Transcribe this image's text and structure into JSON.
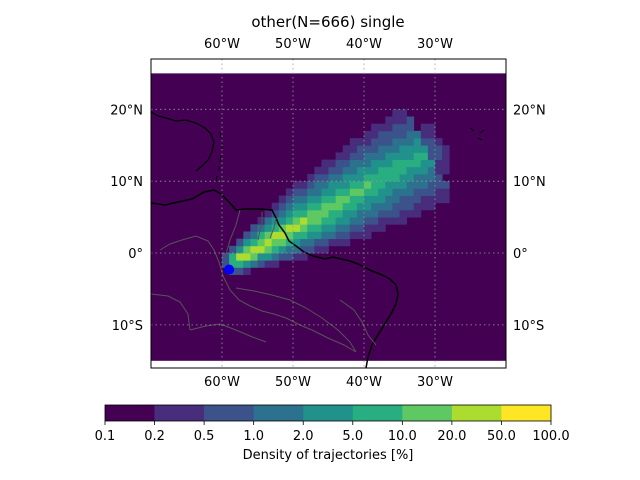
{
  "title": "other(N=666) single",
  "map": {
    "lon_labels": [
      "60°W",
      "50°W",
      "40°W",
      "30°W"
    ],
    "lon_values": [
      -60,
      -50,
      -40,
      -30
    ],
    "lat_labels": [
      "20°N",
      "10°N",
      "0°",
      "10°S"
    ],
    "lat_values": [
      20,
      10,
      0,
      -10
    ],
    "extent": {
      "lon": [
        -70,
        -20
      ],
      "lat": [
        -16,
        27
      ]
    },
    "data_extent": {
      "lon": [
        -70,
        -20
      ],
      "lat": [
        -15,
        25
      ]
    },
    "grid": true,
    "origin_marker": {
      "lon": -59,
      "lat": -2.3,
      "color": "#0000ff"
    },
    "background_color": "#440154"
  },
  "colorbar": {
    "label": "Density of trajectories [%]",
    "ticks": [
      "0.1",
      "0.2",
      "0.5",
      "1.0",
      "2.0",
      "5.0",
      "10.0",
      "20.0",
      "50.0",
      "100.0"
    ],
    "colors": [
      "#440154",
      "#472d7b",
      "#3b528b",
      "#2c728e",
      "#21918c",
      "#28ae80",
      "#5ec962",
      "#addc30",
      "#fde725"
    ]
  }
}
